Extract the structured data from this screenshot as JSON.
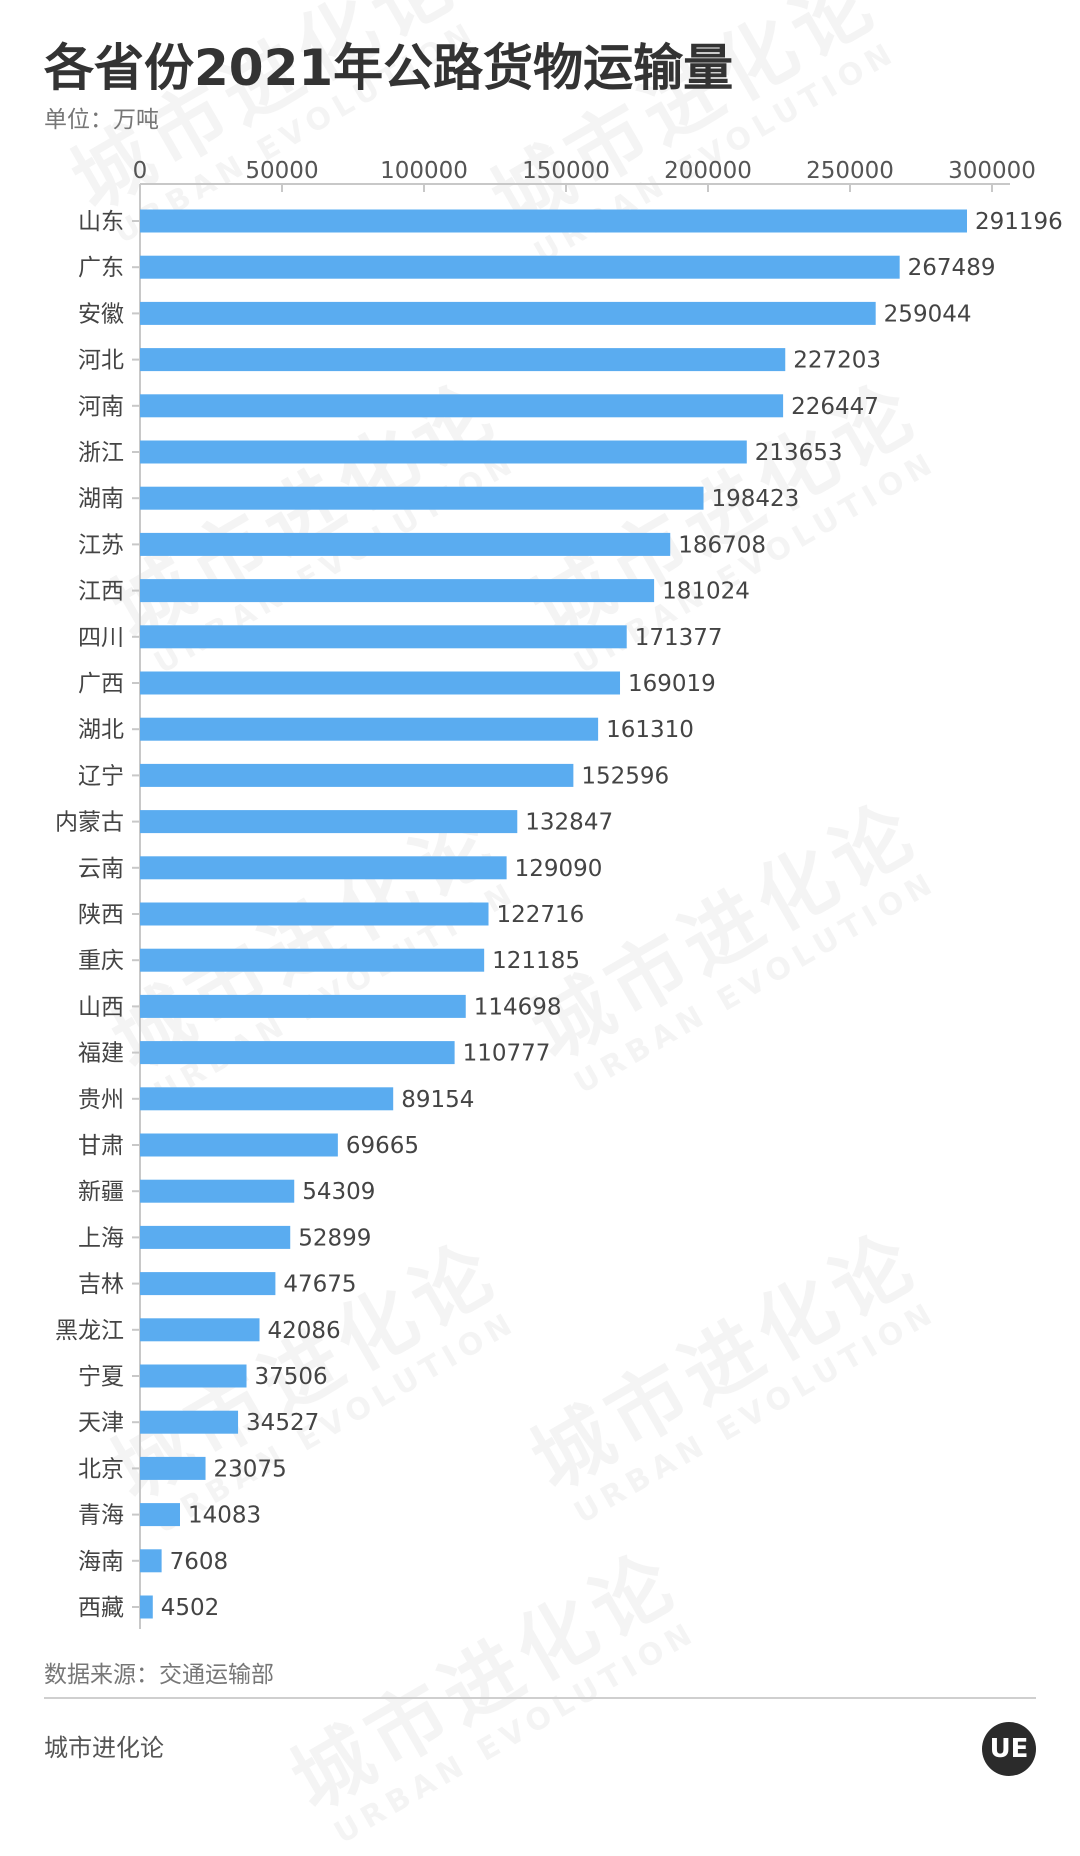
{
  "header": {
    "title": "各省份2021年公路货物运输量",
    "unit": "单位：万吨"
  },
  "footer": {
    "source": "数据来源：交通运输部",
    "brand": "城市进化论",
    "logo_text": "UE"
  },
  "watermark": {
    "cn": "城市进化论",
    "en": "URBAN EVOLUTION"
  },
  "colors": {
    "bar": "#5aacf0",
    "axis": "#c8c8c8",
    "label": "#444444"
  },
  "chart_data": {
    "type": "bar",
    "orientation": "horizontal",
    "title": "各省份2021年公路货物运输量",
    "xlabel": "",
    "ylabel": "",
    "unit": "万吨",
    "xlim": [
      0,
      300000
    ],
    "ticks": [
      0,
      50000,
      100000,
      150000,
      200000,
      250000,
      300000
    ],
    "grid": false,
    "legend": "none",
    "categories": [
      "山东",
      "广东",
      "安徽",
      "河北",
      "河南",
      "浙江",
      "湖南",
      "江苏",
      "江西",
      "四川",
      "广西",
      "湖北",
      "辽宁",
      "内蒙古",
      "云南",
      "陕西",
      "重庆",
      "山西",
      "福建",
      "贵州",
      "甘肃",
      "新疆",
      "上海",
      "吉林",
      "黑龙江",
      "宁夏",
      "天津",
      "北京",
      "青海",
      "海南",
      "西藏"
    ],
    "values": [
      291196,
      267489,
      259044,
      227203,
      226447,
      213653,
      198423,
      186708,
      181024,
      171377,
      169019,
      161310,
      152596,
      132847,
      129090,
      122716,
      121185,
      114698,
      110777,
      89154,
      69665,
      54309,
      52899,
      47675,
      42086,
      37506,
      34527,
      23075,
      14083,
      7608,
      4502
    ]
  }
}
